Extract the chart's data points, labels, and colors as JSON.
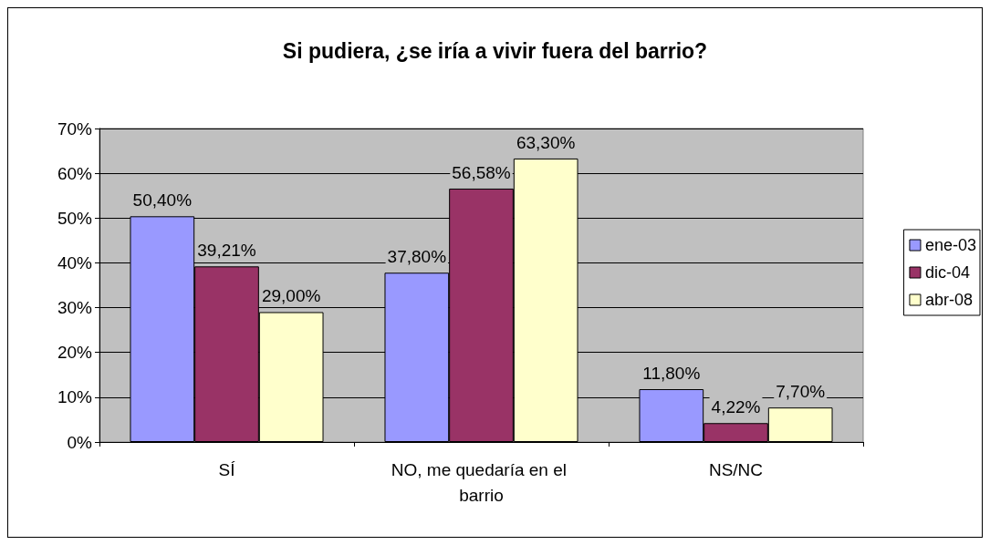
{
  "chart_data": {
    "type": "bar",
    "title": "Si pudiera, ¿se iría a vivir fuera del barrio?",
    "categories": [
      "SÍ",
      "NO, me quedaría en el barrio",
      "NS/NC"
    ],
    "series": [
      {
        "name": "ene-03",
        "color": "#9999ff",
        "values": [
          50.4,
          37.8,
          11.8
        ],
        "value_labels": [
          "50,40%",
          "37,80%",
          "11,80%"
        ]
      },
      {
        "name": "dic-04",
        "color": "#993366",
        "values": [
          39.21,
          56.58,
          4.22
        ],
        "value_labels": [
          "39,21%",
          "56,58%",
          "4,22%"
        ]
      },
      {
        "name": "abr-08",
        "color": "#ffffcc",
        "values": [
          29.0,
          63.3,
          7.7
        ],
        "value_labels": [
          "29,00%",
          "63,30%",
          "7,70%"
        ]
      }
    ],
    "ylim": [
      0,
      70
    ],
    "yticks": [
      {
        "value": 0,
        "label": "0%"
      },
      {
        "value": 10,
        "label": "10%"
      },
      {
        "value": 20,
        "label": "20%"
      },
      {
        "value": 30,
        "label": "30%"
      },
      {
        "value": 40,
        "label": "40%"
      },
      {
        "value": 50,
        "label": "50%"
      },
      {
        "value": 60,
        "label": "60%"
      },
      {
        "value": 70,
        "label": "70%"
      }
    ],
    "grid": "y",
    "legend": "right"
  }
}
